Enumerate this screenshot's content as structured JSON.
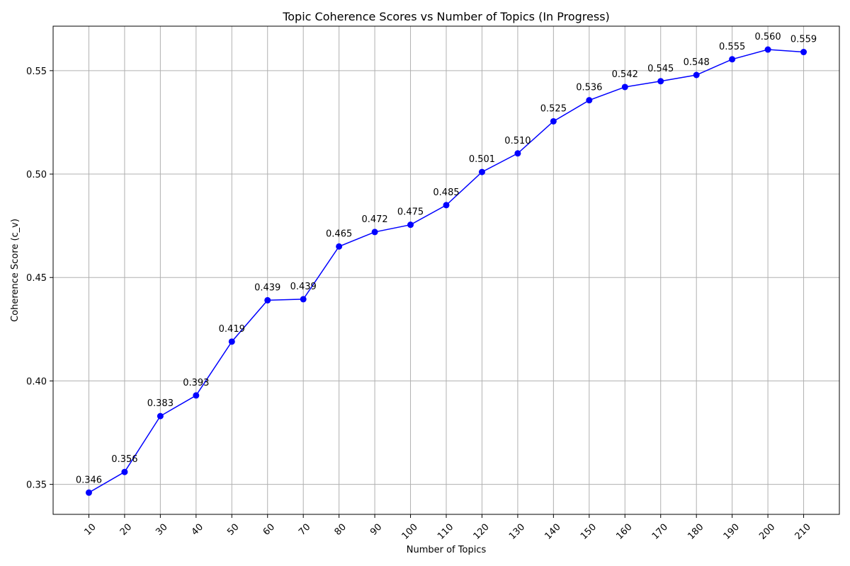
{
  "chart_data": {
    "type": "line",
    "title": "Topic Coherence Scores vs Number of Topics (In Progress)",
    "xlabel": "Number of Topics",
    "ylabel": "Coherence Score (c_v)",
    "x": [
      10,
      20,
      30,
      40,
      50,
      60,
      70,
      80,
      90,
      100,
      110,
      120,
      130,
      140,
      150,
      160,
      170,
      180,
      190,
      200,
      210
    ],
    "x_tick_labels": [
      "10",
      "20",
      "30",
      "40",
      "50",
      "60",
      "70",
      "80",
      "90",
      "100",
      "110",
      "120",
      "130",
      "140",
      "150",
      "160",
      "170",
      "180",
      "190",
      "200",
      "210"
    ],
    "series": [
      {
        "values": [
          0.346,
          0.356,
          0.383,
          0.393,
          0.419,
          0.439,
          0.4395,
          0.465,
          0.472,
          0.4755,
          0.485,
          0.501,
          0.51,
          0.5255,
          0.5357,
          0.5421,
          0.5449,
          0.5479,
          0.5555,
          0.5602,
          0.559
        ],
        "labels": [
          "0.346",
          "0.356",
          "0.383",
          "0.393",
          "0.419",
          "0.439",
          "0.439",
          "0.465",
          "0.472",
          "0.475",
          "0.485",
          "0.501",
          "0.510",
          "0.525",
          "0.536",
          "0.542",
          "0.545",
          "0.548",
          "0.555",
          "0.560",
          "0.559"
        ],
        "color": "#0000ff",
        "marker": "circle"
      }
    ],
    "xlim": [
      0,
      220
    ],
    "ylim": [
      0.3355,
      0.5715
    ],
    "y_ticks": [
      0.35,
      0.4,
      0.45,
      0.5,
      0.55
    ],
    "y_tick_labels": [
      "0.35",
      "0.40",
      "0.45",
      "0.50",
      "0.55"
    ],
    "grid": true,
    "x_tick_rotation": 45
  }
}
